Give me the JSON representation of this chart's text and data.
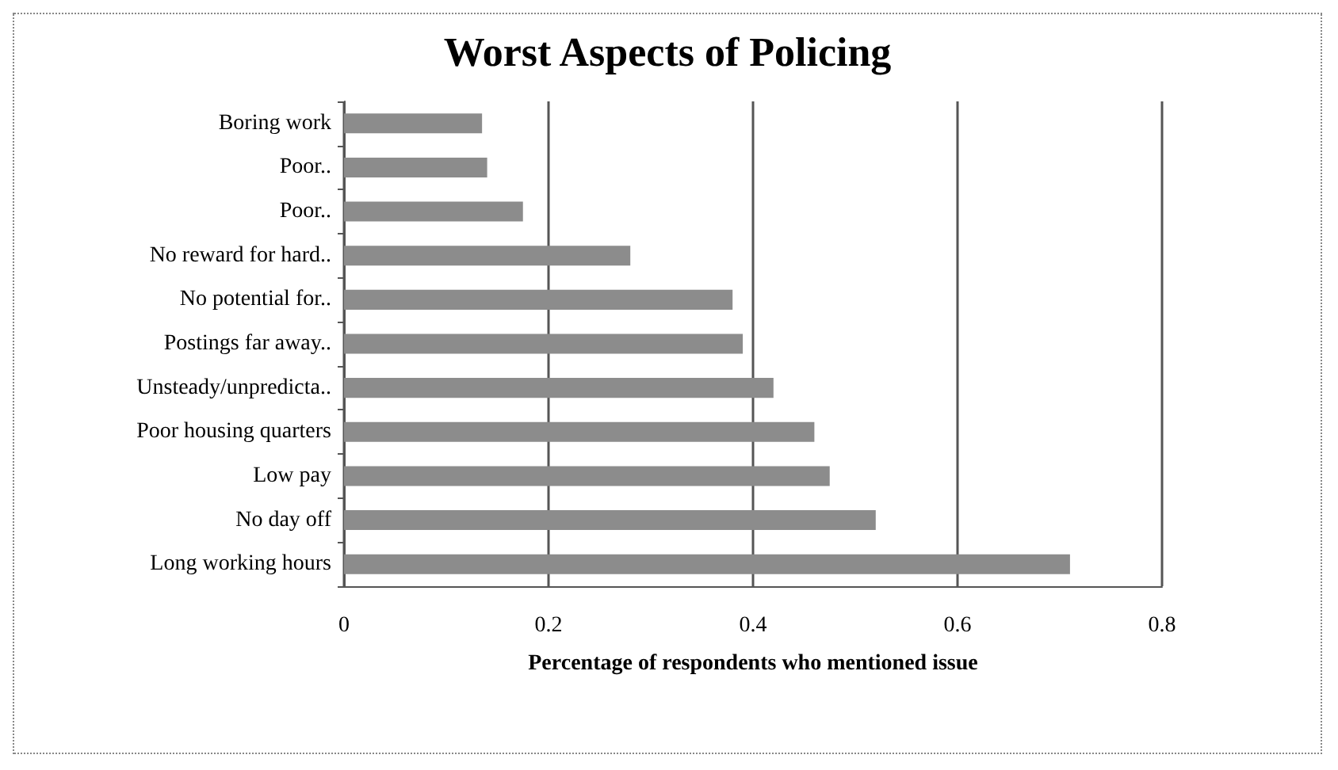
{
  "chart_data": {
    "type": "bar",
    "orientation": "horizontal",
    "title": "Worst Aspects of Policing",
    "xlabel": "Percentage of respondents who mentioned issue",
    "categories": [
      "Boring work",
      "Poor..",
      "Poor..",
      "No reward for hard..",
      "No potential for..",
      "Postings far away..",
      "Unsteady/unpredicta..",
      "Poor housing quarters",
      "Low pay",
      "No day off",
      "Long working hours"
    ],
    "values": [
      0.135,
      0.14,
      0.175,
      0.28,
      0.38,
      0.39,
      0.42,
      0.46,
      0.475,
      0.52,
      0.71
    ],
    "color": "#8c8c8c",
    "xlim": [
      0,
      0.8
    ],
    "xticks": [
      0,
      0.2,
      0.4,
      0.6,
      0.8
    ],
    "grid": "x"
  }
}
